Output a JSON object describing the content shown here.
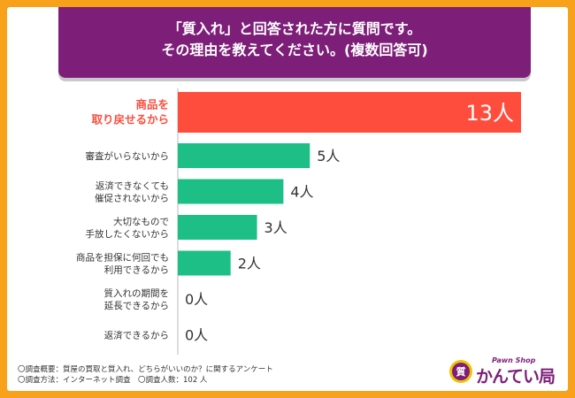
{
  "title": {
    "line1": "「質入れ」と回答された方に質問です。",
    "line2": "その理由を教えてください。(複数回答可)"
  },
  "chart_data": {
    "type": "bar",
    "orientation": "horizontal",
    "unit": "人",
    "categories": [
      [
        "商品を",
        "取り戻せるから"
      ],
      [
        "審査がいらないから"
      ],
      [
        "返済できなくても",
        "催促されないから"
      ],
      [
        "大切なもので",
        "手放したくないから"
      ],
      [
        "商品を担保に何回でも",
        "利用できるから"
      ],
      [
        "質入れの期間を",
        "延長できるから"
      ],
      [
        "返済できるから"
      ]
    ],
    "values": [
      13,
      5,
      4,
      3,
      2,
      0,
      0
    ],
    "labels": [
      "13人",
      "5人",
      "4人",
      "3人",
      "2人",
      "0人",
      "0人"
    ],
    "highlight_index": 0,
    "colors": {
      "highlight": "#ff4d3d",
      "normal": "#1ebf86",
      "highlight_text": "#ff4d3d",
      "label_text": "#333333"
    },
    "xlim": [
      0,
      13
    ]
  },
  "notes": {
    "line1": "〇調査概要：質屋の買取と質入れ、どちらがいいのか？に関するアンケート",
    "line2": "〇調査方法：インターネット調査　〇調査人数：102 人"
  },
  "logo": {
    "sub": "Pawn Shop",
    "mark": "質",
    "brand": "かんてい局"
  }
}
